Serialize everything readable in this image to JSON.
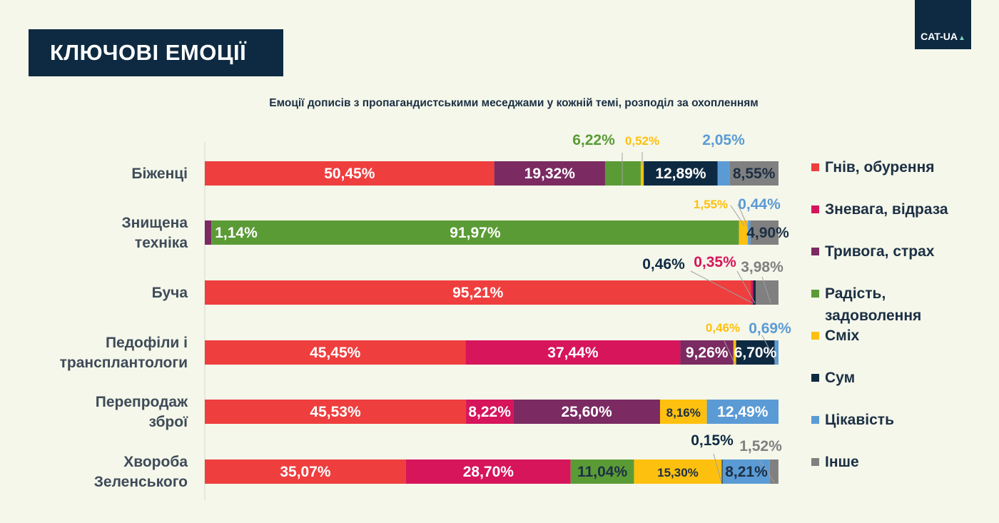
{
  "header": {
    "title": "КЛЮЧОВІ ЕМОЦІЇ",
    "logo": "CAT-UA",
    "subtitle": "Емоції дописів з пропагандистськими меседжами у кожній темі, розподіл за охопленням"
  },
  "colors": {
    "anger": "#ef3e3e",
    "contempt": "#d6155b",
    "fear": "#7b2a62",
    "joy": "#5b9b36",
    "laughter": "#fec00f",
    "sadness": "#0e2a42",
    "interest": "#5b9bd5",
    "other": "#808080"
  },
  "chart_data": {
    "type": "bar",
    "orientation": "horizontal",
    "stacked": true,
    "title": "Емоції дописів з пропагандистськими меседжами у кожній темі, розподіл за охопленням",
    "xlabel": "",
    "ylabel": "",
    "xlim": [
      0,
      100
    ],
    "grid": false,
    "legend_position": "right",
    "categories": [
      "Біженці",
      "Знищена техніка",
      "Буча",
      "Педофіли і трансплантологи",
      "Перепродаж зброї",
      "Хвороба Зеленського"
    ],
    "category_lines": [
      [
        "Біженці"
      ],
      [
        "Знищена",
        "техніка"
      ],
      [
        "Буча"
      ],
      [
        "Педофіли і",
        "трансплантологи"
      ],
      [
        "Перепродаж",
        "зброї"
      ],
      [
        "Хвороба",
        "Зеленського"
      ]
    ],
    "series": [
      {
        "name": "Гнів, обурення",
        "key": "anger",
        "values": [
          50.45,
          0,
          95.21,
          45.45,
          45.53,
          35.07
        ]
      },
      {
        "name": "Зневага, відраза",
        "key": "contempt",
        "values": [
          0,
          0,
          0.35,
          37.44,
          8.22,
          28.7
        ]
      },
      {
        "name": "Тривога, страх",
        "key": "fear",
        "values": [
          19.32,
          1.14,
          0,
          9.26,
          25.6,
          0
        ]
      },
      {
        "name": "Радість, задоволення",
        "key": "joy",
        "values": [
          6.22,
          91.97,
          0,
          0,
          0,
          11.04
        ]
      },
      {
        "name": "Сміх",
        "key": "laughter",
        "values": [
          0.52,
          1.55,
          0,
          0.46,
          8.16,
          15.3
        ]
      },
      {
        "name": "Сум",
        "key": "sadness",
        "values": [
          12.89,
          0,
          0.46,
          6.7,
          0,
          0.15
        ]
      },
      {
        "name": "Цікавість",
        "key": "interest",
        "values": [
          2.05,
          0.44,
          0,
          0.69,
          12.49,
          8.21
        ]
      },
      {
        "name": "Інше",
        "key": "other",
        "values": [
          8.55,
          4.9,
          3.98,
          0,
          0,
          1.52
        ]
      }
    ],
    "data_labels": [
      [
        "50,45%",
        "",
        "19,32%",
        "6,22%",
        "0,52%",
        "12,89%",
        "2,05%",
        "8,55%"
      ],
      [
        "",
        "",
        "1,14%",
        "91,97%",
        "1,55%",
        "",
        "0,44%",
        "4,90%"
      ],
      [
        "95,21%",
        "0,35%",
        "",
        "",
        "",
        "0,46%",
        "",
        "3,98%"
      ],
      [
        "45,45%",
        "37,44%",
        "9,26%",
        "",
        "0,46%",
        "6,70%",
        "0,69%",
        ""
      ],
      [
        "45,53%",
        "8,22%",
        "25,60%",
        "",
        "8,16%",
        "",
        "12,49%",
        ""
      ],
      [
        "35,07%",
        "28,70%",
        "",
        "11,04%",
        "15,30%",
        "0,15%",
        "8,21%",
        "1,52%"
      ]
    ]
  }
}
